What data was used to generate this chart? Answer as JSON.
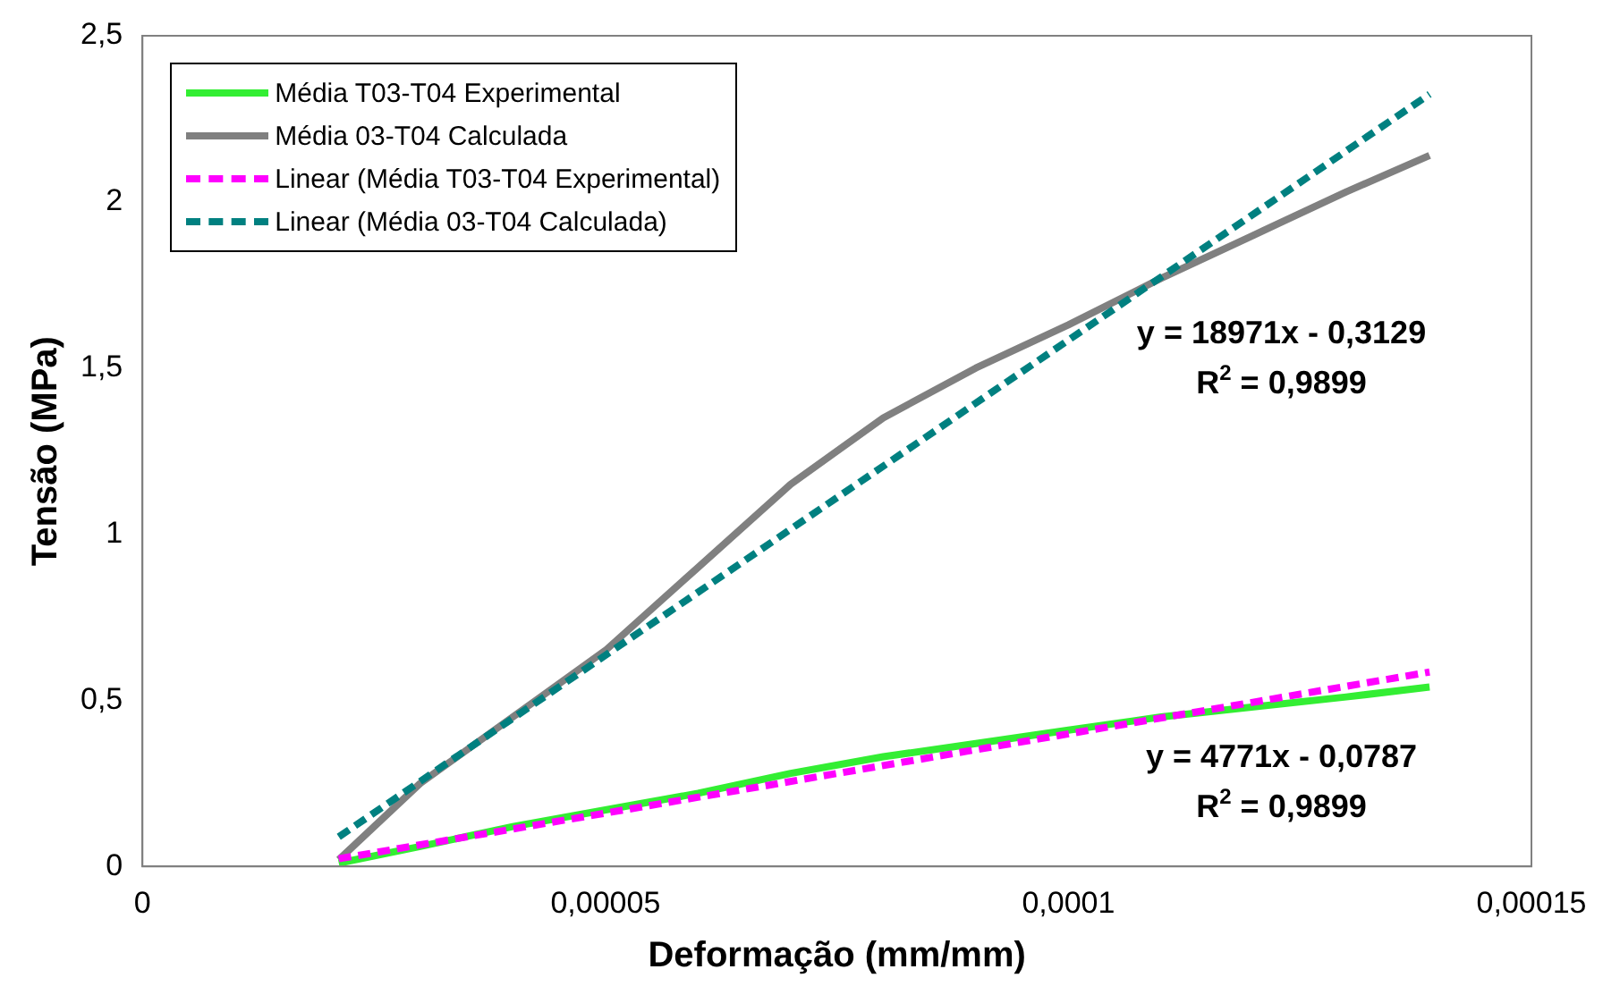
{
  "chart_data": {
    "type": "line",
    "xlabel": "Deformação (mm/mm)",
    "ylabel": "Tensão (MPa)",
    "xlim": [
      0,
      0.00015
    ],
    "ylim": [
      0,
      2.5
    ],
    "xticks": [
      0,
      {
        "value": 5e-05,
        "label": "0,00005"
      },
      {
        "value": 0.0001,
        "label": "0,0001"
      },
      {
        "value": 0.00015,
        "label": "0,00015"
      }
    ],
    "yticks": [
      0,
      {
        "value": 0.5,
        "label": "0,5"
      },
      1,
      {
        "value": 1.5,
        "label": "1,5"
      },
      2,
      {
        "value": 2.5,
        "label": "2,5"
      }
    ],
    "grid": false,
    "legend": "top left",
    "marker": "none",
    "series": [
      {
        "name": "Média T03-T04 Experimental",
        "color": "#33ee33",
        "line_style": "solid",
        "x": [
          2.12e-05,
          3e-05,
          4e-05,
          5e-05,
          6e-05,
          7e-05,
          8e-05,
          9e-05,
          0.0001,
          0.00011,
          0.00012,
          0.00013,
          0.000139
        ],
        "values": [
          0.01,
          0.06,
          0.12,
          0.17,
          0.22,
          0.28,
          0.33,
          0.37,
          0.41,
          0.45,
          0.48,
          0.51,
          0.54
        ]
      },
      {
        "name": "Média 03-T04 Calculada",
        "color": "#808080",
        "line_style": "solid",
        "x": [
          2.12e-05,
          3e-05,
          4e-05,
          5e-05,
          6e-05,
          7e-05,
          8e-05,
          9e-05,
          0.0001,
          0.00011,
          0.00012,
          0.00013,
          0.000139
        ],
        "values": [
          0.02,
          0.25,
          0.45,
          0.65,
          0.9,
          1.15,
          1.35,
          1.5,
          1.63,
          1.77,
          1.9,
          2.03,
          2.14
        ]
      },
      {
        "name": "Linear (Média T03-T04 Experimental)",
        "color": "#ff00ff",
        "line_style": "dashed",
        "x": [
          2.12e-05,
          0.000139
        ],
        "values": [
          0.023,
          0.585
        ]
      },
      {
        "name": "Linear (Média 03-T04 Calculada)",
        "color": "#008080",
        "line_style": "dashed",
        "x": [
          2.12e-05,
          0.000139
        ],
        "values": [
          0.089,
          2.324
        ]
      }
    ],
    "annotations": [
      "y = 18971x - 0,3129",
      "R$^{2}$ = 0,9899",
      "y = 4771x - 0,0787",
      "R$^{2}$ = 0,9899"
    ]
  }
}
